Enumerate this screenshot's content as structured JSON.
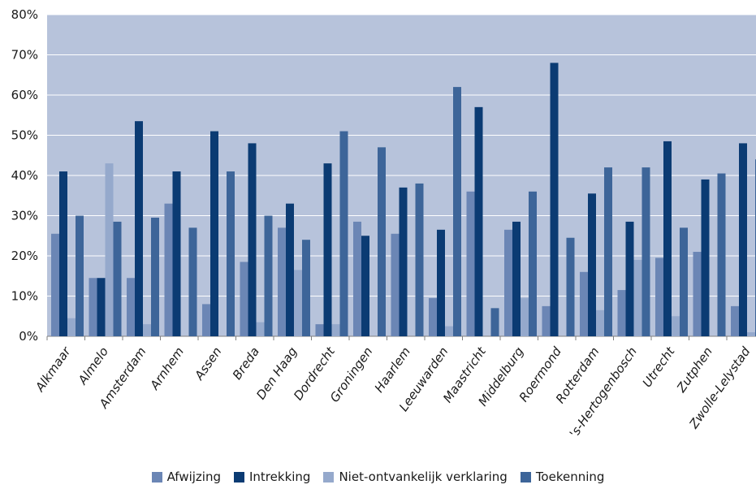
{
  "chart_data": {
    "type": "bar",
    "title": "",
    "xlabel": "",
    "ylabel": "",
    "ylim": [
      0,
      80
    ],
    "yticks": [
      "0%",
      "10%",
      "20%",
      "30%",
      "40%",
      "50%",
      "60%",
      "70%",
      "80%"
    ],
    "grid": true,
    "legend_position": "bottom",
    "plot_background": "#b7c3db",
    "categories": [
      "Alkmaar",
      "Almelo",
      "Amsterdam",
      "Arnhem",
      "Assen",
      "Breda",
      "Den Haag",
      "Dordrecht",
      "Groningen",
      "Haarlem",
      "Leeuwarden",
      "Maastricht",
      "Middelburg",
      "Roermond",
      "Rotterdam",
      "'s-Hertogenbosch",
      "Utrecht",
      "Zutphen",
      "Zwolle-Lelystad"
    ],
    "series": [
      {
        "name": "Afwijzing",
        "color": "#6b86b5",
        "values": [
          25.5,
          14.5,
          14.5,
          33,
          8,
          18.5,
          27,
          3,
          28.5,
          25.5,
          9.5,
          36,
          26.5,
          7.5,
          16,
          11.5,
          19.5,
          21,
          7.5
        ]
      },
      {
        "name": "Intrekking",
        "color": "#0b3b73",
        "values": [
          41,
          14.5,
          53.5,
          41,
          51,
          48,
          33,
          43,
          25,
          37,
          26.5,
          57,
          28.5,
          68,
          35.5,
          28.5,
          48.5,
          39,
          48
        ]
      },
      {
        "name": "Niet-ontvankelijk verklaring",
        "color": "#95a9cc",
        "values": [
          4.5,
          43,
          3,
          0,
          0,
          3.5,
          16.5,
          3,
          0,
          0,
          2.5,
          0,
          9.5,
          0,
          6.5,
          19,
          5,
          0,
          1
        ]
      },
      {
        "name": "Toekenning",
        "color": "#3d6599",
        "values": [
          30,
          28.5,
          29.5,
          27,
          41,
          30,
          24,
          51,
          47,
          38,
          62,
          7,
          36,
          24.5,
          42,
          42,
          27,
          40.5,
          44
        ]
      }
    ]
  }
}
